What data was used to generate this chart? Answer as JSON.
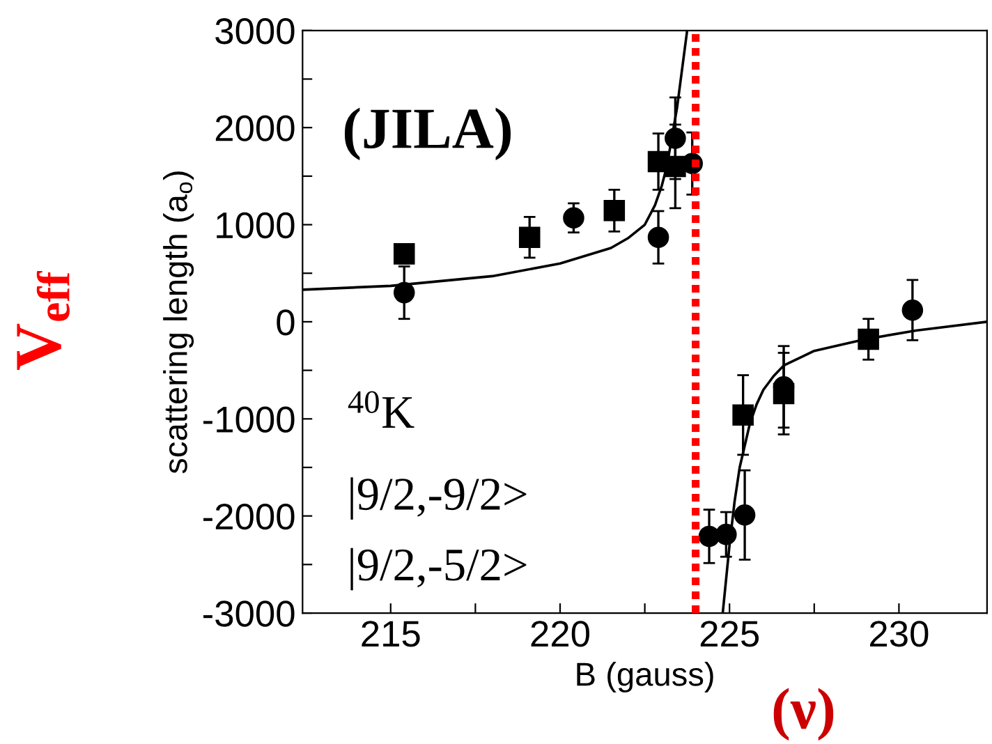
{
  "chart_data": {
    "type": "scatter",
    "xlabel": "B (gauss)",
    "ylabel": "scattering length (a$_{o}$)",
    "xlim": [
      212.4,
      232.6
    ],
    "ylim": [
      -3000,
      3000
    ],
    "xticks": [
      215,
      {
        "value": 217.5,
        "label": null
      },
      220,
      {
        "value": 222.5,
        "label": null
      },
      225,
      {
        "value": 227.5,
        "label": null
      },
      230
    ],
    "yticks": [
      -3000,
      {
        "value": -2500,
        "label": null
      },
      -2000,
      {
        "value": -1500,
        "label": null
      },
      -1000,
      {
        "value": -500,
        "label": null
      },
      0,
      {
        "value": 500,
        "label": null
      },
      1000,
      {
        "value": 1500,
        "label": null
      },
      2000,
      {
        "value": 2500,
        "label": null
      },
      3000
    ],
    "grid": false,
    "legend": false,
    "series": [
      {
        "marker": "circle",
        "color": "#000000",
        "x": [
          215.4,
          220.4,
          222.9,
          223.4,
          223.9,
          224.4,
          224.9,
          225.45,
          226.6,
          230.4
        ],
        "values": [
          300,
          1070,
          870,
          1890,
          1630,
          -2210,
          -2190,
          -1990,
          -670,
          120
        ],
        "errors": [
          270,
          150,
          270,
          420,
          320,
          275,
          230,
          460,
          420,
          310
        ]
      },
      {
        "marker": "square",
        "color": "#000000",
        "x": [
          215.4,
          219.1,
          221.6,
          222.9,
          223.4,
          225.4,
          226.6,
          229.1
        ],
        "values": [
          700,
          870,
          1145,
          1650,
          1600,
          -960,
          -740,
          -180
        ],
        "errors": [
          100,
          210,
          215,
          290,
          430,
          410,
          420,
          210
        ]
      },
      {
        "type": "line",
        "marker": "none",
        "line_style": "solid",
        "color": "#000000",
        "x": [
          212.4,
          215,
          218,
          220,
          221.5,
          222,
          222.5,
          222.8,
          223,
          223.15,
          223.3,
          223.45,
          223.6,
          223.75,
          224.3,
          224.8,
          225,
          225.15,
          225.3,
          225.6,
          225.8,
          226,
          226.3,
          226.6,
          227.5,
          229,
          230.5,
          232.6
        ],
        "values": [
          330,
          370,
          470,
          600,
          760,
          860,
          1000,
          1200,
          1400,
          1600,
          1900,
          2200,
          2600,
          3000,
          null,
          -3000,
          -2300,
          -1850,
          -1500,
          -1050,
          -850,
          -700,
          -560,
          -450,
          -300,
          -180,
          -90,
          0
        ]
      }
    ],
    "ref_lines": [
      {
        "axis": "x",
        "value": 224,
        "color": "#ff0000",
        "line_style": "dotted"
      }
    ],
    "annotations": [
      "(JILA)",
      "$^{40}$K",
      "|9/2,-9/2>",
      "|9/2,-5/2>",
      "V$_{eff}$",
      "(ν)"
    ]
  }
}
